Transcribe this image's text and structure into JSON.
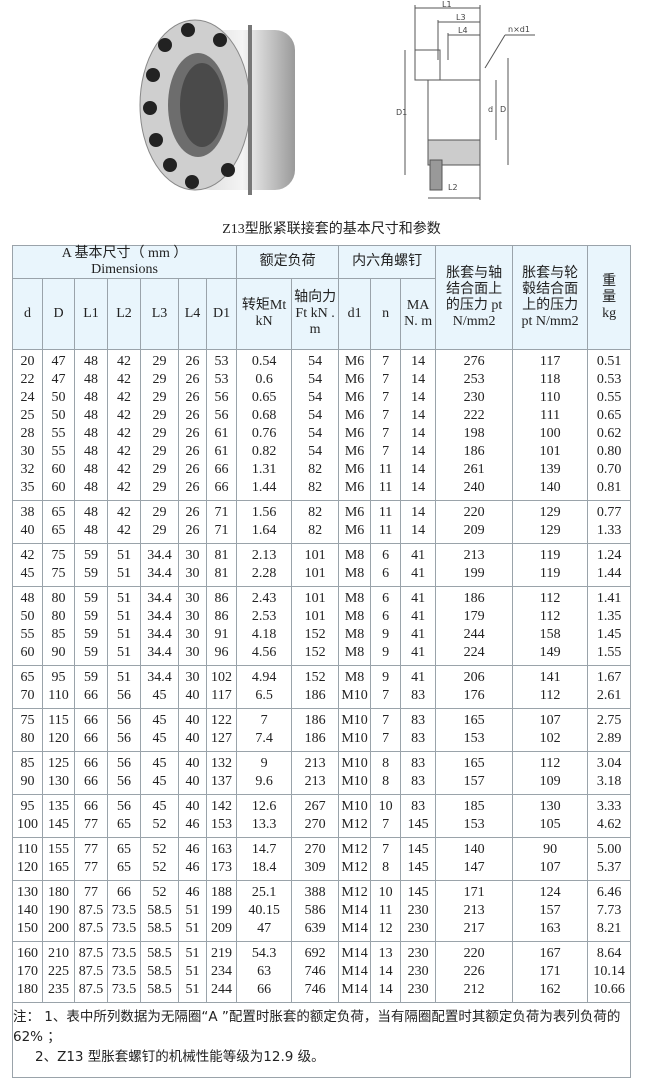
{
  "caption": "Z13型胀紧联接套的基本尺寸和参数",
  "figures": {
    "drawing_labels": [
      "L1",
      "L3",
      "L4",
      "n×d1",
      "D1",
      "d",
      "D",
      "L2"
    ]
  },
  "header": {
    "group_dimensions_line1": "A 基本尺寸（ mm ）",
    "group_dimensions_line2": "Dimensions",
    "group_load": "额定负荷",
    "group_screw": "内六角螺钉",
    "pt_shaft": "胀套与轴结合面上的压力 pt N/mm2",
    "pt_hub": "胀套与轮毂结合面上的压力 pt N/mm2",
    "weight": "重量 kg",
    "columns": [
      "d",
      "D",
      "L1",
      "L2",
      "L3",
      "L4",
      "D1",
      "转矩Mt kN",
      "轴向力Ft kN . m",
      "d1",
      "n",
      "MA N. m"
    ]
  },
  "groups": [
    [
      [
        "20",
        "47",
        "48",
        "42",
        "29",
        "26",
        "53",
        "0.54",
        "54",
        "M6",
        "7",
        "14",
        "276",
        "117",
        "0.51"
      ],
      [
        "22",
        "47",
        "48",
        "42",
        "29",
        "26",
        "53",
        "0.6",
        "54",
        "M6",
        "7",
        "14",
        "253",
        "118",
        "0.53"
      ],
      [
        "24",
        "50",
        "48",
        "42",
        "29",
        "26",
        "56",
        "0.65",
        "54",
        "M6",
        "7",
        "14",
        "230",
        "110",
        "0.55"
      ],
      [
        "25",
        "50",
        "48",
        "42",
        "29",
        "26",
        "56",
        "0.68",
        "54",
        "M6",
        "7",
        "14",
        "222",
        "111",
        "0.65"
      ],
      [
        "28",
        "55",
        "48",
        "42",
        "29",
        "26",
        "61",
        "0.76",
        "54",
        "M6",
        "7",
        "14",
        "198",
        "100",
        "0.62"
      ],
      [
        "30",
        "55",
        "48",
        "42",
        "29",
        "26",
        "61",
        "0.82",
        "54",
        "M6",
        "7",
        "14",
        "186",
        "101",
        "0.80"
      ],
      [
        "32",
        "60",
        "48",
        "42",
        "29",
        "26",
        "66",
        "1.31",
        "82",
        "M6",
        "11",
        "14",
        "261",
        "139",
        "0.70"
      ],
      [
        "35",
        "60",
        "48",
        "42",
        "29",
        "26",
        "66",
        "1.44",
        "82",
        "M6",
        "11",
        "14",
        "240",
        "140",
        "0.81"
      ]
    ],
    [
      [
        "38",
        "65",
        "48",
        "42",
        "29",
        "26",
        "71",
        "1.56",
        "82",
        "M6",
        "11",
        "14",
        "220",
        "129",
        "0.77"
      ],
      [
        "40",
        "65",
        "48",
        "42",
        "29",
        "26",
        "71",
        "1.64",
        "82",
        "M6",
        "11",
        "14",
        "209",
        "129",
        "1.33"
      ]
    ],
    [
      [
        "42",
        "75",
        "59",
        "51",
        "34.4",
        "30",
        "81",
        "2.13",
        "101",
        "M8",
        "6",
        "41",
        "213",
        "119",
        "1.24"
      ],
      [
        "45",
        "75",
        "59",
        "51",
        "34.4",
        "30",
        "81",
        "2.28",
        "101",
        "M8",
        "6",
        "41",
        "199",
        "119",
        "1.44"
      ]
    ],
    [
      [
        "48",
        "80",
        "59",
        "51",
        "34.4",
        "30",
        "86",
        "2.43",
        "101",
        "M8",
        "6",
        "41",
        "186",
        "112",
        "1.41"
      ],
      [
        "50",
        "80",
        "59",
        "51",
        "34.4",
        "30",
        "86",
        "2.53",
        "101",
        "M8",
        "6",
        "41",
        "179",
        "112",
        "1.35"
      ],
      [
        "55",
        "85",
        "59",
        "51",
        "34.4",
        "30",
        "91",
        "4.18",
        "152",
        "M8",
        "9",
        "41",
        "244",
        "158",
        "1.45"
      ],
      [
        "60",
        "90",
        "59",
        "51",
        "34.4",
        "30",
        "96",
        "4.56",
        "152",
        "M8",
        "9",
        "41",
        "224",
        "149",
        "1.55"
      ]
    ],
    [
      [
        "65",
        "95",
        "59",
        "51",
        "34.4",
        "30",
        "102",
        "4.94",
        "152",
        "M8",
        "9",
        "41",
        "206",
        "141",
        "1.67"
      ],
      [
        "70",
        "110",
        "66",
        "56",
        "45",
        "40",
        "117",
        "6.5",
        "186",
        "M10",
        "7",
        "83",
        "176",
        "112",
        "2.61"
      ]
    ],
    [
      [
        "75",
        "115",
        "66",
        "56",
        "45",
        "40",
        "122",
        "7",
        "186",
        "M10",
        "7",
        "83",
        "165",
        "107",
        "2.75"
      ],
      [
        "80",
        "120",
        "66",
        "56",
        "45",
        "40",
        "127",
        "7.4",
        "186",
        "M10",
        "7",
        "83",
        "153",
        "102",
        "2.89"
      ]
    ],
    [
      [
        "85",
        "125",
        "66",
        "56",
        "45",
        "40",
        "132",
        "9",
        "213",
        "M10",
        "8",
        "83",
        "165",
        "112",
        "3.04"
      ],
      [
        "90",
        "130",
        "66",
        "56",
        "45",
        "40",
        "137",
        "9.6",
        "213",
        "M10",
        "8",
        "83",
        "157",
        "109",
        "3.18"
      ]
    ],
    [
      [
        "95",
        "135",
        "66",
        "56",
        "45",
        "40",
        "142",
        "12.6",
        "267",
        "M10",
        "10",
        "83",
        "185",
        "130",
        "3.33"
      ],
      [
        "100",
        "145",
        "77",
        "65",
        "52",
        "46",
        "153",
        "13.3",
        "270",
        "M12",
        "7",
        "145",
        "153",
        "105",
        "4.62"
      ]
    ],
    [
      [
        "110",
        "155",
        "77",
        "65",
        "52",
        "46",
        "163",
        "14.7",
        "270",
        "M12",
        "7",
        "145",
        "140",
        "90",
        "5.00"
      ],
      [
        "120",
        "165",
        "77",
        "65",
        "52",
        "46",
        "173",
        "18.4",
        "309",
        "M12",
        "8",
        "145",
        "147",
        "107",
        "5.37"
      ]
    ],
    [
      [
        "130",
        "180",
        "77",
        "66",
        "52",
        "46",
        "188",
        "25.1",
        "388",
        "M12",
        "10",
        "145",
        "171",
        "124",
        "6.46"
      ],
      [
        "140",
        "190",
        "87.5",
        "73.5",
        "58.5",
        "51",
        "199",
        "40.15",
        "586",
        "M14",
        "11",
        "230",
        "213",
        "157",
        "7.73"
      ],
      [
        "150",
        "200",
        "87.5",
        "73.5",
        "58.5",
        "51",
        "209",
        "47",
        "639",
        "M14",
        "12",
        "230",
        "217",
        "163",
        "8.21"
      ]
    ],
    [
      [
        "160",
        "210",
        "87.5",
        "73.5",
        "58.5",
        "51",
        "219",
        "54.3",
        "692",
        "M14",
        "13",
        "230",
        "220",
        "167",
        "8.64"
      ],
      [
        "170",
        "225",
        "87.5",
        "73.5",
        "58.5",
        "51",
        "234",
        "63",
        "746",
        "M14",
        "14",
        "230",
        "226",
        "171",
        "10.14"
      ],
      [
        "180",
        "235",
        "87.5",
        "73.5",
        "58.5",
        "51",
        "244",
        "66",
        "746",
        "M14",
        "14",
        "230",
        "212",
        "162",
        "10.66"
      ]
    ]
  ],
  "notes": {
    "line1": "注：  1、表中所列数据为无隔圈“A ”配置时胀套的额定负荷，当有隔圈配置时其额定负荷为表列负荷的62% ；",
    "line2": "2、Z13 型胀套螺钉的机械性能等级为12.9 级。"
  }
}
